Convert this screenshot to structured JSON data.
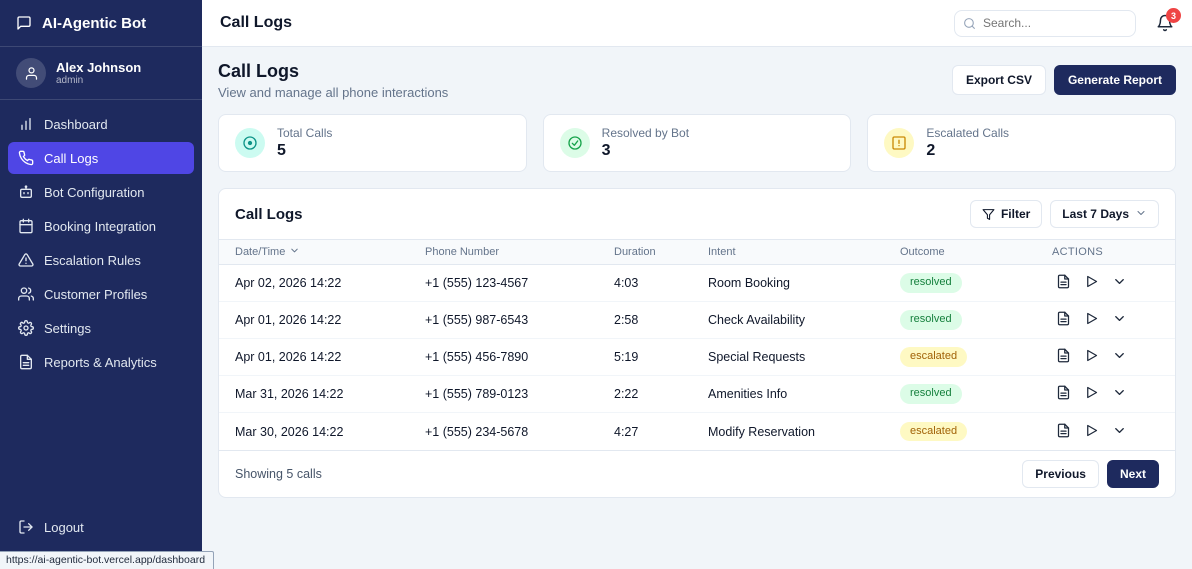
{
  "app": {
    "title": "AI-Agentic Bot"
  },
  "user": {
    "name": "Alex Johnson",
    "role": "admin"
  },
  "sidebar": {
    "items": [
      {
        "label": "Dashboard",
        "icon": "dashboard",
        "active": false
      },
      {
        "label": "Call Logs",
        "icon": "phone",
        "active": true
      },
      {
        "label": "Bot Configuration",
        "icon": "bot",
        "active": false
      },
      {
        "label": "Booking Integration",
        "icon": "calendar",
        "active": false
      },
      {
        "label": "Escalation Rules",
        "icon": "alert-triangle",
        "active": false
      },
      {
        "label": "Customer Profiles",
        "icon": "users",
        "active": false
      },
      {
        "label": "Settings",
        "icon": "gear",
        "active": false
      },
      {
        "label": "Reports & Analytics",
        "icon": "file-text",
        "active": false
      }
    ],
    "logout_label": "Logout"
  },
  "topbar": {
    "title": "Call Logs",
    "search_placeholder": "Search...",
    "notification_count": "3"
  },
  "page": {
    "title": "Call Logs",
    "subtitle": "View and manage all phone interactions",
    "export_button": "Export CSV",
    "report_button": "Generate Report"
  },
  "stats": [
    {
      "label": "Total Calls",
      "value": "5",
      "icon": "circle-dot",
      "color": "#0d9488",
      "bg": "#ccfbf1"
    },
    {
      "label": "Resolved by Bot",
      "value": "3",
      "icon": "check-circle",
      "color": "#16a34a",
      "bg": "#dcfce7"
    },
    {
      "label": "Escalated Calls",
      "value": "2",
      "icon": "alert-square",
      "color": "#ca8a04",
      "bg": "#fef9c3"
    }
  ],
  "table": {
    "title": "Call Logs",
    "filter_label": "Filter",
    "range_label": "Last 7 Days",
    "columns": [
      "Date/Time",
      "Phone Number",
      "Duration",
      "Intent",
      "Outcome",
      "ACTIONS"
    ],
    "rows": [
      {
        "datetime": "Apr 02, 2026 14:22",
        "phone": "+1 (555) 123-4567",
        "duration": "4:03",
        "intent": "Room Booking",
        "outcome": "resolved"
      },
      {
        "datetime": "Apr 01, 2026 14:22",
        "phone": "+1 (555) 987-6543",
        "duration": "2:58",
        "intent": "Check Availability",
        "outcome": "resolved"
      },
      {
        "datetime": "Apr 01, 2026 14:22",
        "phone": "+1 (555) 456-7890",
        "duration": "5:19",
        "intent": "Special Requests",
        "outcome": "escalated"
      },
      {
        "datetime": "Mar 31, 2026 14:22",
        "phone": "+1 (555) 789-0123",
        "duration": "2:22",
        "intent": "Amenities Info",
        "outcome": "resolved"
      },
      {
        "datetime": "Mar 30, 2026 14:22",
        "phone": "+1 (555) 234-5678",
        "duration": "4:27",
        "intent": "Modify Reservation",
        "outcome": "escalated"
      }
    ],
    "footer": {
      "summary": "Showing 5 calls",
      "previous_label": "Previous",
      "next_label": "Next"
    }
  },
  "statusbar": {
    "url": "https://ai-agentic-bot.vercel.app/dashboard"
  },
  "colors": {
    "sidebar": "#1e2a5e",
    "accent": "#4f46e5",
    "navy": "#1e2a5e",
    "notification": "#ef4444",
    "badge_resolved_bg": "#dcfce7",
    "badge_resolved_text": "#15803d",
    "badge_escalated_bg": "#fef9c3",
    "badge_escalated_text": "#a16207"
  }
}
